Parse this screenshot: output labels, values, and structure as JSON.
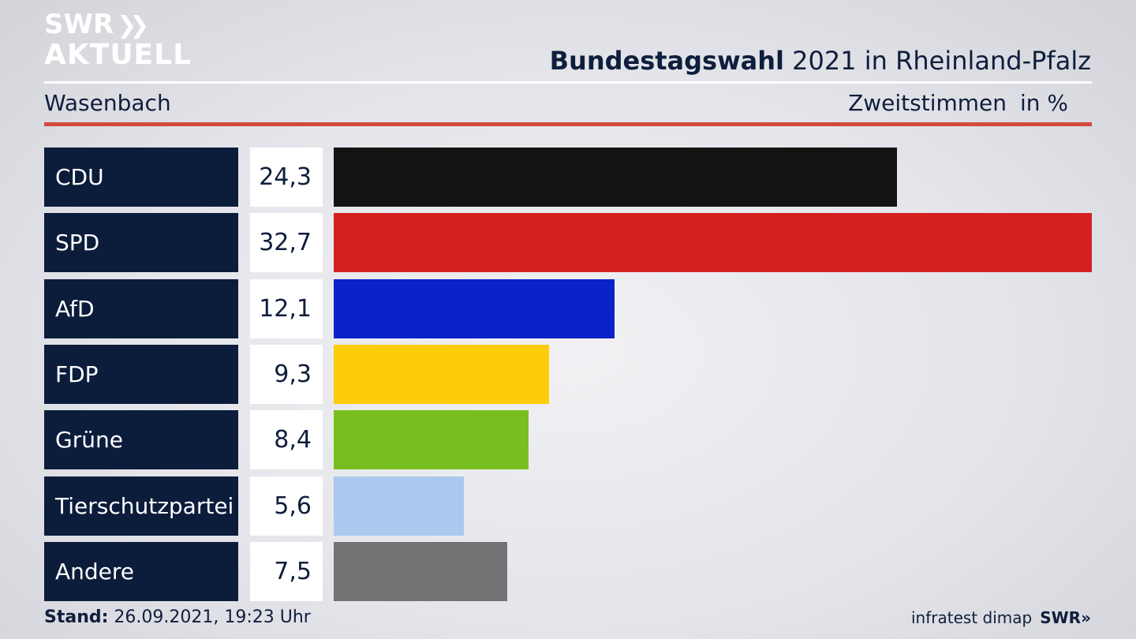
{
  "brand": {
    "logo_line1": "SWR",
    "logo_chevrons": "»",
    "logo_line2": "AKTUELL"
  },
  "header": {
    "title_bold": "Bundestagswahl",
    "title_rest": " 2021 in Rheinland-Pfalz",
    "region": "Wasenbach",
    "measure": "Zweitstimmen",
    "unit": "in %"
  },
  "chart_data": {
    "type": "bar",
    "orientation": "horizontal",
    "categories": [
      "CDU",
      "SPD",
      "AfD",
      "FDP",
      "Grüne",
      "Tierschutzpartei",
      "Andere"
    ],
    "values": [
      24.3,
      32.7,
      12.1,
      9.3,
      8.4,
      5.6,
      7.5
    ],
    "value_labels": [
      "24,3",
      "32,7",
      "12,1",
      "9,3",
      "8,4",
      "5,6",
      "7,5"
    ],
    "colors": [
      "#131313",
      "#d52020",
      "#0a22c8",
      "#fdcc0a",
      "#78be1e",
      "#abc9ef",
      "#737375"
    ],
    "title": "Bundestagswahl 2021 in Rheinland-Pfalz",
    "xlabel": "",
    "ylabel": "",
    "xlim": [
      0,
      32.7
    ],
    "grid": false,
    "legend": "none"
  },
  "footer": {
    "stand_label": "Stand:",
    "stand_value": " 26.09.2021, 19:23 Uhr",
    "source": "infratest dimap",
    "source_brand": "SWR»"
  },
  "colors": {
    "navy": "#0c1c3b",
    "accent_red": "#d24a3c",
    "text": "#0f1e3c"
  }
}
